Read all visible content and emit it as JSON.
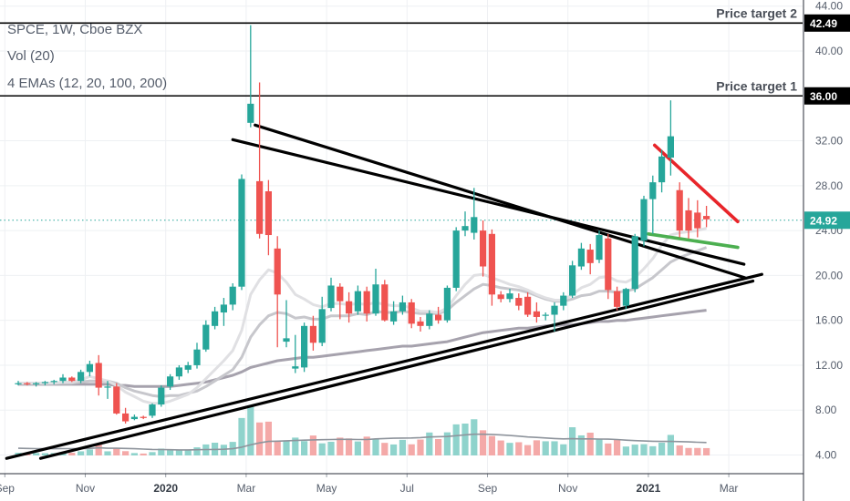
{
  "chart_data": {
    "type": "candlestick",
    "symbol_line": "SPCE, 1W, Cboe BZX",
    "volume_line": "Vol (20)",
    "ema_line": "4 EMAs (12, 20, 100, 200)",
    "ylim": [
      3.5,
      45.5
    ],
    "y_ticks": [
      "4.00",
      "8.00",
      "12.00",
      "16.00",
      "20.00",
      "24.00",
      "28.00",
      "32.00",
      "36.00",
      "40.00",
      "44.00"
    ],
    "x_ticks": [
      {
        "label": "Sep",
        "week": -1.5,
        "bold": false
      },
      {
        "label": "Nov",
        "week": 7.5,
        "bold": false
      },
      {
        "label": "2020",
        "week": 16.5,
        "bold": true
      },
      {
        "label": "Mar",
        "week": 25.5,
        "bold": false
      },
      {
        "label": "May",
        "week": 34.5,
        "bold": false
      },
      {
        "label": "Jul",
        "week": 43.5,
        "bold": false
      },
      {
        "label": "Sep",
        "week": 52.5,
        "bold": false
      },
      {
        "label": "Nov",
        "week": 61.5,
        "bold": false
      },
      {
        "label": "2021",
        "week": 70.5,
        "bold": true
      },
      {
        "label": "Mar",
        "week": 79.5,
        "bold": false
      }
    ],
    "candles": [
      [
        10.3,
        10.6,
        10.2,
        10.4
      ],
      [
        10.4,
        10.5,
        10.2,
        10.3
      ],
      [
        10.3,
        10.5,
        10.1,
        10.4
      ],
      [
        10.4,
        10.6,
        10.2,
        10.5
      ],
      [
        10.5,
        10.7,
        10.3,
        10.6
      ],
      [
        10.6,
        11.2,
        10.4,
        10.9
      ],
      [
        10.9,
        11.0,
        10.5,
        10.6
      ],
      [
        10.6,
        11.6,
        10.4,
        11.4
      ],
      [
        11.4,
        12.4,
        11.0,
        12.1
      ],
      [
        12.2,
        12.9,
        9.3,
        10.0
      ],
      [
        10.0,
        10.6,
        9.0,
        10.1
      ],
      [
        10.1,
        10.4,
        7.6,
        7.7
      ],
      [
        7.7,
        8.2,
        6.8,
        7.0
      ],
      [
        7.2,
        7.6,
        7.1,
        7.4
      ],
      [
        7.4,
        7.5,
        7.2,
        7.3
      ],
      [
        7.5,
        8.6,
        7.3,
        8.5
      ],
      [
        8.5,
        10.2,
        8.3,
        10.0
      ],
      [
        10.1,
        11.2,
        9.8,
        11.0
      ],
      [
        11.0,
        12.0,
        10.7,
        11.8
      ],
      [
        11.6,
        12.3,
        11.3,
        12.0
      ],
      [
        12.0,
        14.0,
        11.7,
        13.4
      ],
      [
        13.4,
        16.0,
        13.2,
        15.6
      ],
      [
        15.5,
        17.2,
        15.2,
        16.8
      ],
      [
        16.7,
        18.0,
        15.5,
        17.4
      ],
      [
        17.4,
        19.3,
        16.9,
        19.0
      ],
      [
        19.0,
        29.0,
        18.7,
        28.6
      ],
      [
        33.6,
        42.3,
        33.2,
        35.3
      ],
      [
        28.4,
        37.2,
        23.3,
        23.7
      ],
      [
        27.5,
        28.5,
        21.8,
        23.6
      ],
      [
        22.4,
        23.5,
        13.6,
        18.3
      ],
      [
        14.1,
        17.8,
        13.6,
        14.4
      ],
      [
        11.7,
        14.7,
        11.3,
        11.9
      ],
      [
        11.8,
        15.8,
        11.4,
        15.5
      ],
      [
        15.5,
        16.4,
        13.3,
        14.0
      ],
      [
        14.0,
        18.1,
        13.7,
        17.0
      ],
      [
        17.1,
        19.8,
        16.8,
        19.1
      ],
      [
        19.0,
        19.3,
        16.1,
        17.7
      ],
      [
        17.7,
        18.5,
        15.8,
        16.6
      ],
      [
        16.8,
        19.1,
        16.5,
        18.6
      ],
      [
        18.6,
        19.0,
        15.9,
        16.6
      ],
      [
        16.6,
        20.6,
        16.4,
        19.2
      ],
      [
        19.2,
        19.6,
        15.9,
        16.0
      ],
      [
        15.9,
        17.7,
        15.6,
        16.8
      ],
      [
        16.8,
        18.2,
        16.5,
        17.6
      ],
      [
        17.6,
        17.9,
        15.3,
        15.7
      ],
      [
        15.9,
        16.3,
        15.0,
        15.5
      ],
      [
        15.5,
        16.9,
        15.2,
        16.6
      ],
      [
        16.5,
        17.2,
        15.7,
        16.0
      ],
      [
        16.0,
        19.1,
        15.8,
        18.9
      ],
      [
        18.9,
        24.3,
        18.6,
        24.0
      ],
      [
        24.0,
        25.7,
        23.5,
        24.4
      ],
      [
        23.8,
        27.8,
        23.2,
        25.2
      ],
      [
        24.0,
        24.9,
        19.9,
        20.8
      ],
      [
        23.7,
        24.1,
        17.3,
        18.3
      ],
      [
        18.3,
        18.6,
        17.6,
        17.9
      ],
      [
        17.9,
        18.8,
        17.6,
        18.4
      ],
      [
        18.0,
        18.4,
        16.9,
        17.3
      ],
      [
        18.1,
        18.5,
        16.3,
        16.5
      ],
      [
        16.8,
        17.6,
        15.8,
        16.3
      ],
      [
        16.4,
        16.7,
        16.0,
        16.5
      ],
      [
        16.5,
        17.6,
        15.0,
        17.3
      ],
      [
        17.3,
        18.5,
        16.9,
        18.2
      ],
      [
        18.2,
        21.3,
        18.0,
        20.9
      ],
      [
        20.8,
        22.9,
        20.5,
        22.4
      ],
      [
        22.3,
        22.8,
        20.1,
        21.1
      ],
      [
        21.4,
        24.0,
        21.1,
        23.6
      ],
      [
        23.3,
        23.7,
        17.9,
        18.7
      ],
      [
        18.6,
        19.0,
        16.9,
        17.2
      ],
      [
        17.3,
        18.9,
        17.0,
        18.8
      ],
      [
        18.8,
        23.7,
        18.5,
        23.5
      ],
      [
        23.1,
        27.1,
        22.6,
        26.8
      ],
      [
        26.8,
        28.9,
        23.7,
        28.3
      ],
      [
        28.3,
        31.2,
        27.4,
        30.6
      ],
      [
        30.5,
        35.6,
        28.9,
        32.4
      ],
      [
        27.6,
        28.3,
        23.4,
        24.0
      ],
      [
        25.8,
        26.9,
        23.3,
        24.0
      ],
      [
        25.6,
        26.7,
        23.4,
        24.2
      ],
      [
        25.3,
        26.2,
        24.3,
        25.0
      ]
    ],
    "volume": [
      1.7,
      1.6,
      1.5,
      1.4,
      1.5,
      2.1,
      1.7,
      2.6,
      3.8,
      7.2,
      2.6,
      4.3,
      2.7,
      1.5,
      1.2,
      2.1,
      4.3,
      3.6,
      3.4,
      3.5,
      5.1,
      6.9,
      8.0,
      6.7,
      8.5,
      23.5,
      31.5,
      20.7,
      21.2,
      8.9,
      9.0,
      11.2,
      9.0,
      12.5,
      7.6,
      8.6,
      11.2,
      10.7,
      8.8,
      11.8,
      10.3,
      7.9,
      6.9,
      9.8,
      7.0,
      10.0,
      14.4,
      10.3,
      14.5,
      19.5,
      20.0,
      22.7,
      15.8,
      12.2,
      9.4,
      7.9,
      8.3,
      6.5,
      9.5,
      8.9,
      8.9,
      7.0,
      17.7,
      12.6,
      14.3,
      10.4,
      7.5,
      10.0,
      5.6,
      6.8,
      7.1,
      5.8,
      8.0,
      12.9,
      6.3,
      4.7,
      4.7,
      4.6
    ],
    "vol_ma": [
      4.5,
      4.4,
      4.3,
      4.2,
      4.2,
      4.3,
      4.3,
      4.3,
      4.4,
      4.8,
      4.5,
      4.5,
      4.4,
      4.2,
      4.0,
      3.8,
      3.7,
      3.6,
      3.5,
      3.5,
      3.6,
      3.7,
      3.8,
      3.9,
      4.2,
      5.2,
      6.7,
      7.9,
      8.8,
      9.0,
      9.2,
      9.4,
      9.6,
      9.8,
      9.9,
      10.0,
      10.1,
      10.1,
      10.0,
      10.0,
      10.4,
      10.6,
      10.8,
      10.9,
      11.0,
      11.2,
      11.6,
      11.8,
      11.9,
      12.4,
      12.9,
      13.3,
      13.3,
      13.2,
      12.9,
      12.5,
      12.1,
      11.6,
      11.3,
      11.0,
      10.6,
      10.4,
      10.5,
      10.4,
      10.4,
      10.3,
      10.2,
      10.0,
      9.6,
      9.3,
      9.1,
      8.9,
      8.8,
      8.8,
      8.7,
      8.5,
      8.3,
      8.1
    ],
    "ema_fast": [
      10.4,
      10.4,
      10.4,
      10.4,
      10.4,
      10.5,
      10.5,
      10.7,
      11.0,
      10.8,
      10.6,
      10.2,
      9.6,
      9.2,
      8.8,
      8.6,
      8.6,
      8.8,
      9.1,
      9.4,
      10.0,
      10.8,
      11.6,
      12.4,
      13.3,
      15.1,
      18.3,
      19.6,
      20.5,
      20.2,
      19.4,
      18.3,
      17.9,
      17.4,
      17.2,
      17.5,
      17.5,
      17.4,
      17.5,
      17.4,
      17.6,
      17.4,
      17.3,
      17.3,
      17.1,
      16.8,
      16.8,
      16.7,
      17.1,
      18.2,
      19.2,
      20.0,
      20.1,
      19.8,
      19.5,
      19.2,
      19.0,
      18.7,
      18.3,
      18.0,
      17.8,
      17.8,
      18.3,
      18.9,
      19.2,
      19.8,
      19.9,
      19.5,
      19.4,
      19.8,
      20.6,
      21.5,
      22.7,
      23.6,
      23.8,
      23.9,
      24.0,
      24.2
    ],
    "ema_slow": [
      10.4,
      10.4,
      10.4,
      10.4,
      10.4,
      10.4,
      10.4,
      10.5,
      10.6,
      10.6,
      10.6,
      10.4,
      10.0,
      9.7,
      9.5,
      9.3,
      9.2,
      9.3,
      9.3,
      9.5,
      9.7,
      10.1,
      10.6,
      11.1,
      11.6,
      12.7,
      14.5,
      15.6,
      16.4,
      16.7,
      16.6,
      16.2,
      16.3,
      16.1,
      16.1,
      16.4,
      16.4,
      16.4,
      16.6,
      16.5,
      16.8,
      16.7,
      16.7,
      16.8,
      16.7,
      16.6,
      16.6,
      16.6,
      16.9,
      17.6,
      18.2,
      18.8,
      19.2,
      19.1,
      18.9,
      18.8,
      18.7,
      18.5,
      18.2,
      17.9,
      17.7,
      17.7,
      17.9,
      18.2,
      18.3,
      18.6,
      18.6,
      18.5,
      18.6,
      18.8,
      19.3,
      19.8,
      20.5,
      21.2,
      21.6,
      21.9,
      22.2,
      22.5
    ],
    "ema_100": [
      10.3,
      10.3,
      10.3,
      10.3,
      10.3,
      10.3,
      10.3,
      10.3,
      10.3,
      10.3,
      10.3,
      10.2,
      10.2,
      10.1,
      10.1,
      10.1,
      10.1,
      10.1,
      10.2,
      10.3,
      10.4,
      10.5,
      10.7,
      10.9,
      11.1,
      11.4,
      11.8,
      12.0,
      12.2,
      12.4,
      12.5,
      12.6,
      12.7,
      12.7,
      12.8,
      12.9,
      13.0,
      13.1,
      13.2,
      13.3,
      13.4,
      13.5,
      13.6,
      13.7,
      13.7,
      13.8,
      13.9,
      14.0,
      14.1,
      14.3,
      14.5,
      14.7,
      14.9,
      15.0,
      15.1,
      15.2,
      15.3,
      15.3,
      15.4,
      15.5,
      15.5,
      15.6,
      15.6,
      15.7,
      15.8,
      15.9,
      15.9,
      16.0,
      16.0,
      16.1,
      16.2,
      16.3,
      16.4,
      16.5,
      16.6,
      16.7,
      16.8,
      16.9
    ],
    "trendlines": [
      {
        "role": "upper",
        "color": "#000000",
        "from": [
          26.5,
          33.4
        ],
        "to": [
          81.3,
          19.8
        ]
      },
      {
        "role": "upper",
        "color": "#000000",
        "from": [
          24.0,
          32.1
        ],
        "to": [
          81.2,
          21.0
        ]
      },
      {
        "role": "lower",
        "color": "#000000",
        "from": [
          -1.3,
          3.7
        ],
        "to": [
          83.2,
          20.1
        ]
      },
      {
        "role": "lower",
        "color": "#000000",
        "from": [
          2.5,
          3.7
        ],
        "to": [
          82.2,
          19.5
        ]
      },
      {
        "role": "red",
        "color": "#e8252a",
        "from": [
          71.2,
          31.6
        ],
        "to": [
          80.5,
          24.8
        ]
      },
      {
        "role": "green",
        "color": "#4caf50",
        "from": [
          70.5,
          23.7
        ],
        "to": [
          80.5,
          22.5
        ]
      }
    ],
    "levels": [
      {
        "value": 42.49,
        "tag": "42.49",
        "label": "Price target 2"
      },
      {
        "value": 36.0,
        "tag": "36.00",
        "label": "Price target 1"
      }
    ],
    "last_price": {
      "value": 24.92,
      "tag": "24.92"
    },
    "colors": {
      "up": "#26a69a",
      "down": "#ef5350",
      "vol_up": "#8fd3cc",
      "vol_down": "#f4a9a8",
      "last": "#26a69a",
      "grid": "#eef0f3"
    }
  }
}
